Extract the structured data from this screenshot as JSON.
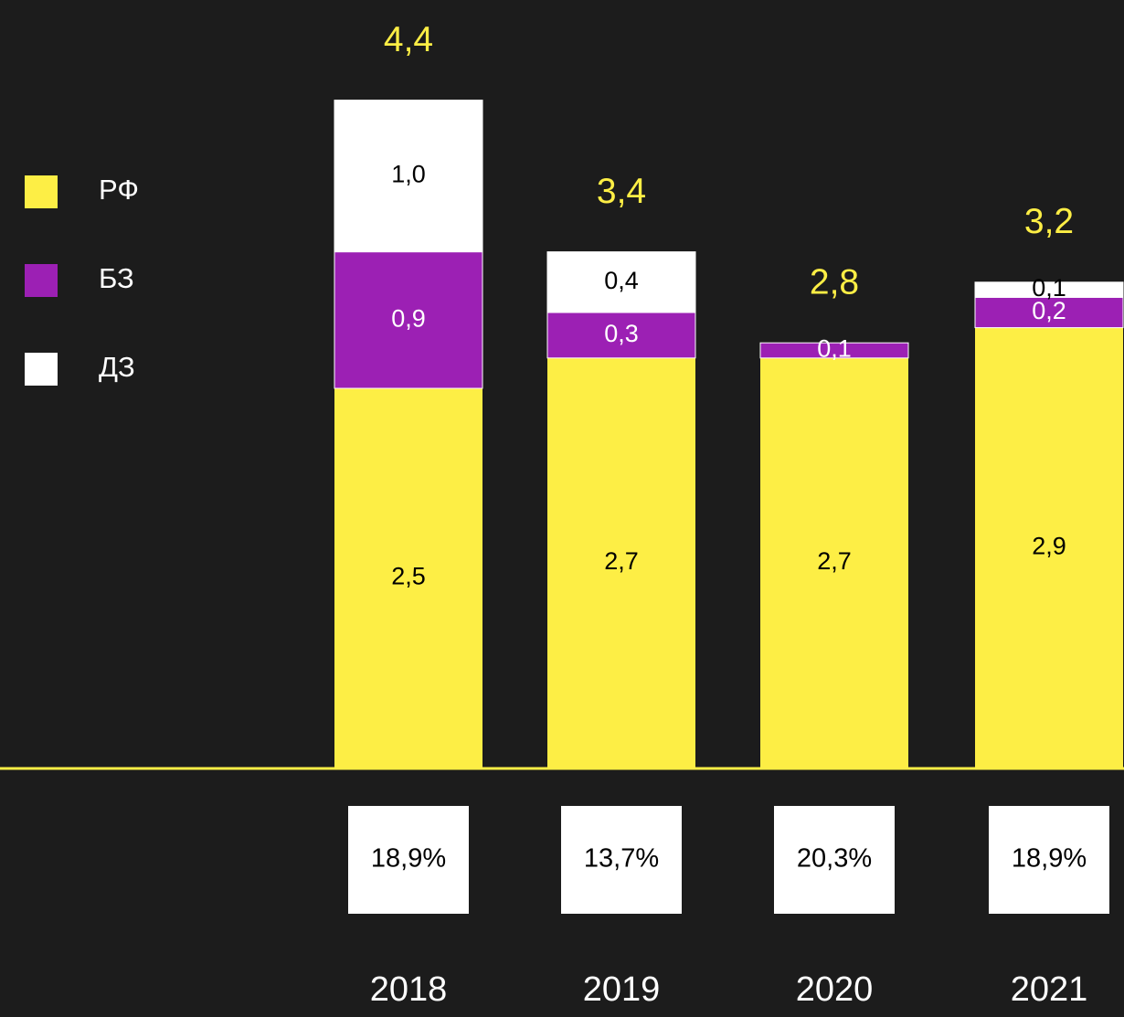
{
  "chart_data": {
    "type": "stacked_bar",
    "categories": [
      "2018",
      "2019",
      "2020",
      "2021"
    ],
    "series": [
      {
        "name": "РФ",
        "color": "#fdee45",
        "values": [
          2.5,
          2.7,
          2.7,
          2.9
        ],
        "value_labels": [
          "2,5",
          "2,7",
          "2,7",
          "2,9"
        ]
      },
      {
        "name": "БЗ",
        "color": "#9c20b4",
        "values": [
          0.9,
          0.3,
          0.1,
          0.2
        ],
        "value_labels": [
          "0,9",
          "0,3",
          "0,1",
          "0,2"
        ]
      },
      {
        "name": "ДЗ",
        "color": "#ffffff",
        "values": [
          1.0,
          0.4,
          0,
          0.1
        ],
        "value_labels": [
          "1,0",
          "0,4",
          null,
          "0,1"
        ]
      }
    ],
    "totals": [
      4.4,
      3.4,
      2.8,
      3.2
    ],
    "total_labels": [
      "4,4",
      "3,4",
      "2,8",
      "3,2"
    ],
    "shares": [
      "18,9%",
      "13,7%",
      "20,3%",
      "18,9%"
    ]
  }
}
